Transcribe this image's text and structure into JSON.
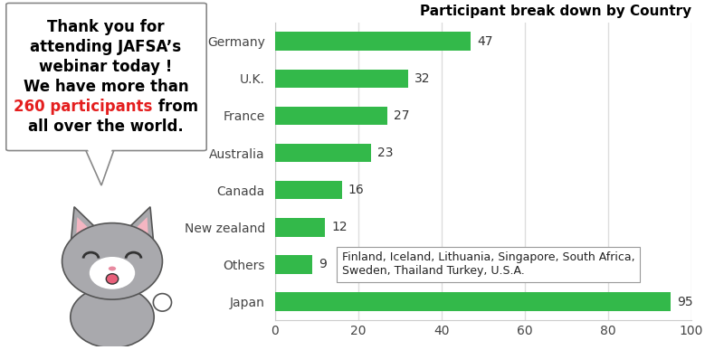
{
  "chart_data": {
    "type": "bar",
    "orientation": "horizontal",
    "title": "Participant break down by Country",
    "categories": [
      "Germany",
      "U.K.",
      "France",
      "Australia",
      "Canada",
      "New zealand",
      "Others",
      "Japan"
    ],
    "values": [
      47,
      32,
      27,
      23,
      16,
      12,
      9,
      95
    ],
    "color": "#33b94a",
    "xlim": [
      0,
      100
    ],
    "xticks": [
      0,
      20,
      40,
      60,
      80,
      100
    ],
    "grid": true,
    "data_labels": true,
    "annotations": [
      {
        "category": "Others",
        "text": "Finland, Iceland, Lithuania, Singapore, South Africa, Sweden, Thailand Turkey, U.S.A."
      }
    ]
  },
  "speech_bubble": [
    [
      {
        "text": "Thank you for"
      }
    ],
    [
      {
        "text": "attending JAFSA’s"
      }
    ],
    [
      {
        "text": "webinar today !"
      }
    ],
    [
      {
        "text": "We have more than"
      }
    ],
    [
      {
        "text": "260 participants",
        "color": "#e41e1e"
      },
      {
        "text": " from"
      }
    ],
    [
      {
        "text": "all over the world."
      }
    ]
  ]
}
